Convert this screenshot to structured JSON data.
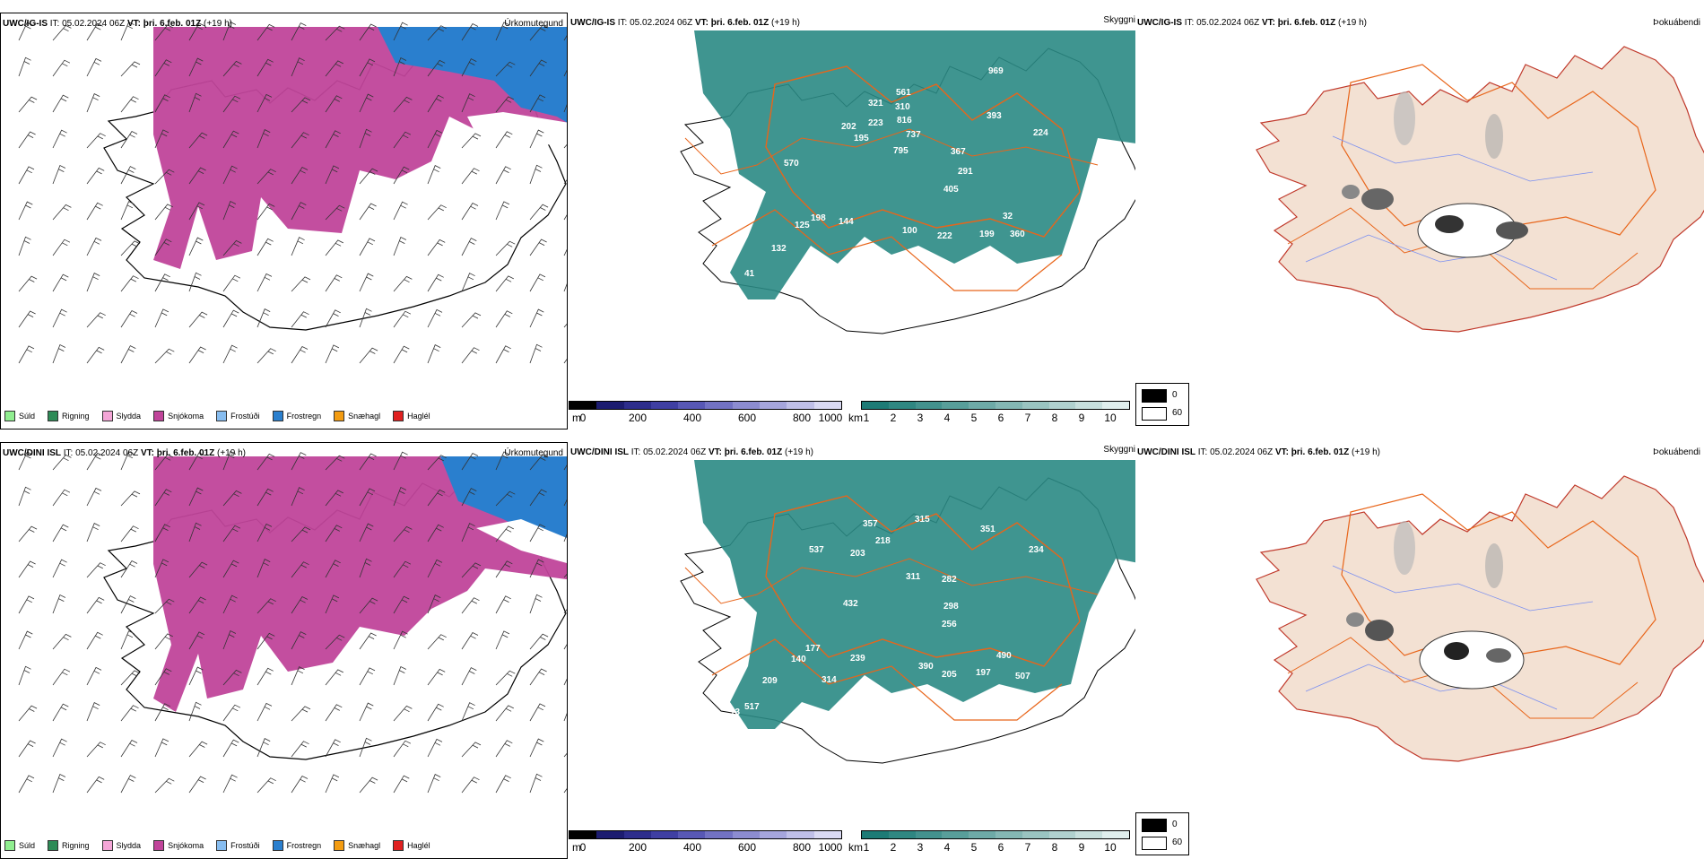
{
  "rows": [
    {
      "model": "UWC/IG-IS",
      "precip_panel": {
        "title_model": "UWC/IG-IS",
        "it_label": "IT:",
        "it_value": "05.02.2024 06Z",
        "vt_label": "VT:",
        "vt_value": "þri. 6.feb. 01Z",
        "lead": "(+19 h)",
        "product": "Úrkomutegund"
      },
      "vis_panel": {
        "title_model": "UWC/IG-IS",
        "it_label": "IT:",
        "it_value": "05.02.2024 06Z",
        "vt_label": "VT:",
        "vt_value": "þri. 6.feb. 01Z",
        "lead": "(+19 h)",
        "product": "Skyggni",
        "labels": [
          "969",
          "561",
          "321",
          "310",
          "202",
          "223",
          "816",
          "195",
          "737",
          "393",
          "224",
          "795",
          "367",
          "570",
          "291",
          "405",
          "198",
          "125",
          "144",
          "100",
          "222",
          "199",
          "32",
          "360",
          "132",
          "41"
        ]
      },
      "fog_panel": {
        "title_model": "UWC/IG-IS",
        "it_label": "IT:",
        "it_value": "05.02.2024 06Z",
        "vt_label": "VT:",
        "vt_value": "þri. 6.feb. 01Z",
        "lead": "(+19 h)",
        "product": "Þokuábendi"
      }
    },
    {
      "model": "UWC/DINI ISL",
      "precip_panel": {
        "title_model": "UWC/DINI ISL",
        "it_label": "IT:",
        "it_value": "05.02.2024 06Z",
        "vt_label": "VT:",
        "vt_value": "þri. 6.feb. 01Z",
        "lead": "(+19 h)",
        "product": "Úrkomutegund"
      },
      "vis_panel": {
        "title_model": "UWC/DINI ISL",
        "it_label": "IT:",
        "it_value": "05.02.2024 06Z",
        "vt_label": "VT:",
        "vt_value": "þri. 6.feb. 01Z",
        "lead": "(+19 h)",
        "product": "Skyggni",
        "labels": [
          "315",
          "357",
          "351",
          "537",
          "218",
          "234",
          "203",
          "311",
          "282",
          "432",
          "298",
          "256",
          "177",
          "490",
          "140",
          "239",
          "390",
          "205",
          "197",
          "507",
          "209",
          "314",
          "517",
          "13"
        ]
      },
      "fog_panel": {
        "title_model": "UWC/DINI ISL",
        "it_label": "IT:",
        "it_value": "05.02.2024 06Z",
        "vt_label": "VT:",
        "vt_value": "þri. 6.feb. 01Z",
        "lead": "(+19 h)",
        "product": "Þokuábendi"
      }
    }
  ],
  "precip_legend": [
    {
      "label": "Súld",
      "color": "#90ee90"
    },
    {
      "label": "Rigning",
      "color": "#2e8b57"
    },
    {
      "label": "Slydda",
      "color": "#f4a6d7"
    },
    {
      "label": "Snjókoma",
      "color": "#c0449a"
    },
    {
      "label": "Frostúði",
      "color": "#87bdf0"
    },
    {
      "label": "Frostregn",
      "color": "#2a7fce"
    },
    {
      "label": "Snæhagl",
      "color": "#f39c12"
    },
    {
      "label": "Haglél",
      "color": "#e02020"
    }
  ],
  "elevation_colorbar": {
    "unit": "m",
    "ticks": [
      "0",
      "200",
      "400",
      "600",
      "800",
      "1000"
    ],
    "colors": [
      "#000000",
      "#1c1c70",
      "#2d2d8c",
      "#3f3fa3",
      "#5858b5",
      "#7272c3",
      "#8c8cd0",
      "#a6a6dc",
      "#c0c0e8",
      "#dadaf3"
    ]
  },
  "visibility_colorbar": {
    "unit": "km",
    "ticks": [
      "1",
      "2",
      "3",
      "4",
      "5",
      "6",
      "7",
      "8",
      "9",
      "10"
    ],
    "colors": [
      "#1d7b76",
      "#2f8782",
      "#43928e",
      "#589e9a",
      "#6eaaa7",
      "#84b7b4",
      "#9ac4c1",
      "#b1d1cf",
      "#c8dfdd",
      "#e0eeed"
    ]
  },
  "fog_legend": [
    {
      "label": "0",
      "color": "#000000"
    },
    {
      "label": "60",
      "color": "#ffffff"
    }
  ],
  "colors": {
    "snow": "#c0449a",
    "freezing_rain": "#2a7fce",
    "vis_low": "#2a8a84",
    "land_fog": "#f3e1d3",
    "roads": "#e8651a",
    "rivers": "#7a8ff0"
  }
}
